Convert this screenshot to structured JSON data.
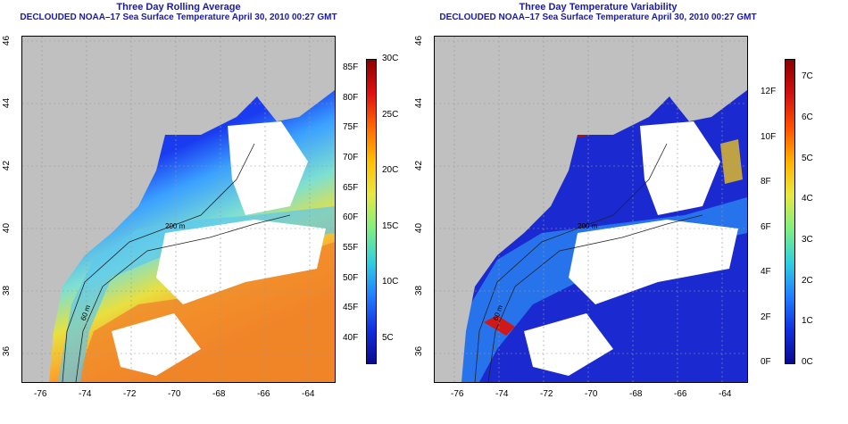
{
  "left": {
    "title": "Three Day Rolling Average",
    "subtitle": "DECLOUDED NOAA–17 Sea Surface Temperature April 30, 2010 00:27 GMT",
    "contour_labels": [
      "200 m",
      "60 m"
    ],
    "colorbar_f": [
      "85F",
      "80F",
      "75F",
      "70F",
      "65F",
      "60F",
      "55F",
      "50F",
      "45F",
      "40F"
    ],
    "colorbar_c": [
      "30C",
      "25C",
      "20C",
      "15C",
      "10C",
      "5C"
    ]
  },
  "right": {
    "title": "Three Day Temperature Variability",
    "subtitle": "DECLOUDED NOAA–17 Sea Surface Temperature April 30, 2010 00:27 GMT",
    "contour_labels": [
      "200 m",
      "60 m"
    ],
    "colorbar_f": [
      "12F",
      "10F",
      "8F",
      "6F",
      "4F",
      "2F",
      "0F"
    ],
    "colorbar_c": [
      "7C",
      "6C",
      "5C",
      "4C",
      "3C",
      "2C",
      "1C",
      "0C"
    ]
  },
  "axes": {
    "lon_ticks": [
      "-76",
      "-74",
      "-72",
      "-70",
      "-68",
      "-66",
      "-64"
    ],
    "lat_ticks": [
      "46",
      "44",
      "42",
      "40",
      "38",
      "36"
    ]
  },
  "colors": {
    "title": "#1a1aa8",
    "land": "#c0c0c0",
    "cloud": "#ffffff"
  }
}
